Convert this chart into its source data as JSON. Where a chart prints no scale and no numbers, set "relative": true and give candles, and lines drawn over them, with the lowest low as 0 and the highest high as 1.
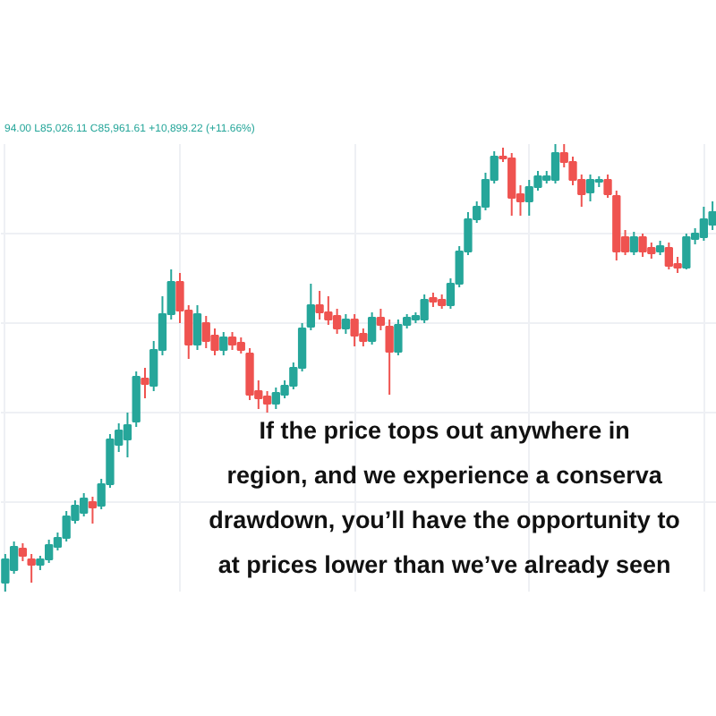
{
  "chart_data": {
    "type": "candlestick",
    "relative": true,
    "grid": true,
    "annotations": [
      "94.00 L85,026.11 C85,961.61 +10,899.22 (+11.66%)",
      "If the price tops out anywhere in",
      "region, and we experience a conserva",
      "drawdown, you’ll have the opportunity to",
      "at prices lower than we’ve already seen"
    ],
    "categories": [
      null,
      null,
      null,
      null,
      null,
      null,
      null,
      null,
      null,
      null,
      null,
      null,
      null,
      null,
      null,
      null,
      null,
      null,
      null,
      null,
      null,
      null,
      null,
      null,
      null,
      null,
      null,
      null,
      null,
      null,
      null,
      null,
      null,
      null,
      null,
      null,
      null,
      null,
      null,
      null,
      null,
      null,
      null,
      null,
      null,
      null,
      null,
      null,
      null,
      null,
      null,
      null,
      null,
      null,
      null,
      null,
      null,
      null,
      null,
      null,
      null,
      null,
      null,
      null,
      null,
      null,
      null,
      null,
      null,
      null,
      null,
      null,
      null,
      null,
      null,
      null,
      null,
      null,
      null,
      null,
      null,
      null
    ],
    "ohlc": [
      [
        0.02,
        0.084,
        0.0,
        0.072
      ],
      [
        0.048,
        0.112,
        0.04,
        0.1
      ],
      [
        0.096,
        0.108,
        0.068,
        0.08
      ],
      [
        0.072,
        0.084,
        0.02,
        0.06
      ],
      [
        0.06,
        0.08,
        0.048,
        0.072
      ],
      [
        0.072,
        0.116,
        0.064,
        0.104
      ],
      [
        0.1,
        0.132,
        0.092,
        0.12
      ],
      [
        0.12,
        0.18,
        0.112,
        0.168
      ],
      [
        0.16,
        0.204,
        0.152,
        0.192
      ],
      [
        0.176,
        0.22,
        0.168,
        0.208
      ],
      [
        0.2,
        0.212,
        0.152,
        0.188
      ],
      [
        0.192,
        0.252,
        0.184,
        0.24
      ],
      [
        0.24,
        0.352,
        0.232,
        0.34
      ],
      [
        0.328,
        0.376,
        0.312,
        0.36
      ],
      [
        0.34,
        0.4,
        0.3,
        0.372
      ],
      [
        0.38,
        0.492,
        0.368,
        0.48
      ],
      [
        0.476,
        0.5,
        0.432,
        0.464
      ],
      [
        0.46,
        0.56,
        0.448,
        0.54
      ],
      [
        0.54,
        0.66,
        0.528,
        0.62
      ],
      [
        0.62,
        0.72,
        0.608,
        0.692
      ],
      [
        0.692,
        0.712,
        0.6,
        0.628
      ],
      [
        0.628,
        0.64,
        0.52,
        0.552
      ],
      [
        0.552,
        0.64,
        0.54,
        0.62
      ],
      [
        0.6,
        0.616,
        0.544,
        0.56
      ],
      [
        0.572,
        0.588,
        0.528,
        0.54
      ],
      [
        0.54,
        0.58,
        0.528,
        0.568
      ],
      [
        0.568,
        0.58,
        0.54,
        0.552
      ],
      [
        0.556,
        0.568,
        0.532,
        0.54
      ],
      [
        0.532,
        0.544,
        0.428,
        0.44
      ],
      [
        0.448,
        0.472,
        0.408,
        0.432
      ],
      [
        0.436,
        0.448,
        0.4,
        0.42
      ],
      [
        0.42,
        0.456,
        0.408,
        0.444
      ],
      [
        0.44,
        0.472,
        0.432,
        0.46
      ],
      [
        0.46,
        0.512,
        0.452,
        0.5
      ],
      [
        0.5,
        0.6,
        0.492,
        0.588
      ],
      [
        0.592,
        0.688,
        0.584,
        0.64
      ],
      [
        0.64,
        0.672,
        0.608,
        0.624
      ],
      [
        0.624,
        0.66,
        0.596,
        0.608
      ],
      [
        0.616,
        0.632,
        0.576,
        0.588
      ],
      [
        0.588,
        0.62,
        0.576,
        0.608
      ],
      [
        0.608,
        0.62,
        0.548,
        0.572
      ],
      [
        0.576,
        0.588,
        0.548,
        0.56
      ],
      [
        0.56,
        0.624,
        0.552,
        0.612
      ],
      [
        0.612,
        0.632,
        0.584,
        0.596
      ],
      [
        0.592,
        0.608,
        0.44,
        0.536
      ],
      [
        0.536,
        0.608,
        0.528,
        0.596
      ],
      [
        0.596,
        0.62,
        0.588,
        0.612
      ],
      [
        0.608,
        0.624,
        0.6,
        0.616
      ],
      [
        0.608,
        0.664,
        0.6,
        0.652
      ],
      [
        0.656,
        0.668,
        0.636,
        0.648
      ],
      [
        0.652,
        0.664,
        0.632,
        0.64
      ],
      [
        0.64,
        0.7,
        0.632,
        0.688
      ],
      [
        0.688,
        0.772,
        0.68,
        0.76
      ],
      [
        0.76,
        0.848,
        0.752,
        0.832
      ],
      [
        0.832,
        0.872,
        0.824,
        0.86
      ],
      [
        0.86,
        0.936,
        0.852,
        0.92
      ],
      [
        0.92,
        0.984,
        0.912,
        0.972
      ],
      [
        0.972,
        0.992,
        0.96,
        0.968
      ],
      [
        0.968,
        0.98,
        0.84,
        0.88
      ],
      [
        0.888,
        0.908,
        0.84,
        0.872
      ],
      [
        0.872,
        0.92,
        0.84,
        0.904
      ],
      [
        0.904,
        0.94,
        0.896,
        0.928
      ],
      [
        0.92,
        0.94,
        0.912,
        0.928
      ],
      [
        0.92,
        1.0,
        0.912,
        0.98
      ],
      [
        0.98,
        1.0,
        0.948,
        0.96
      ],
      [
        0.96,
        0.972,
        0.908,
        0.92
      ],
      [
        0.92,
        0.932,
        0.86,
        0.888
      ],
      [
        0.892,
        0.932,
        0.872,
        0.92
      ],
      [
        0.916,
        0.928,
        0.904,
        0.92
      ],
      [
        0.92,
        0.932,
        0.88,
        0.888
      ],
      [
        0.884,
        0.896,
        0.74,
        0.76
      ],
      [
        0.792,
        0.808,
        0.752,
        0.76
      ],
      [
        0.76,
        0.804,
        0.752,
        0.792
      ],
      [
        0.792,
        0.8,
        0.748,
        0.76
      ],
      [
        0.768,
        0.78,
        0.744,
        0.756
      ],
      [
        0.76,
        0.784,
        0.752,
        0.772
      ],
      [
        0.768,
        0.78,
        0.72,
        0.728
      ],
      [
        0.732,
        0.748,
        0.712,
        0.724
      ],
      [
        0.724,
        0.8,
        0.72,
        0.792
      ],
      [
        0.788,
        0.812,
        0.776,
        0.8
      ],
      [
        0.792,
        0.86,
        0.784,
        0.832
      ],
      [
        0.82,
        0.872,
        0.808,
        0.848
      ]
    ],
    "colors": [
      "#26a69a",
      "#26a69a",
      "#ef5350",
      "#ef5350",
      "#26a69a",
      "#26a69a",
      "#26a69a",
      "#26a69a",
      "#26a69a",
      "#26a69a",
      "#ef5350",
      "#26a69a",
      "#26a69a",
      "#26a69a",
      "#26a69a",
      "#26a69a",
      "#ef5350",
      "#26a69a",
      "#26a69a",
      "#26a69a",
      "#ef5350",
      "#ef5350",
      "#26a69a",
      "#ef5350",
      "#ef5350",
      "#26a69a",
      "#ef5350",
      "#ef5350",
      "#ef5350",
      "#ef5350",
      "#ef5350",
      "#26a69a",
      "#26a69a",
      "#26a69a",
      "#26a69a",
      "#26a69a",
      "#ef5350",
      "#ef5350",
      "#ef5350",
      "#26a69a",
      "#ef5350",
      "#ef5350",
      "#26a69a",
      "#ef5350",
      "#ef5350",
      "#26a69a",
      "#26a69a",
      "#26a69a",
      "#26a69a",
      "#ef5350",
      "#ef5350",
      "#26a69a",
      "#26a69a",
      "#26a69a",
      "#26a69a",
      "#26a69a",
      "#26a69a",
      "#ef5350",
      "#ef5350",
      "#ef5350",
      "#26a69a",
      "#26a69a",
      "#26a69a",
      "#26a69a",
      "#ef5350",
      "#ef5350",
      "#ef5350",
      "#26a69a",
      "#26a69a",
      "#ef5350",
      "#ef5350",
      "#ef5350",
      "#26a69a",
      "#ef5350",
      "#ef5350",
      "#26a69a",
      "#ef5350",
      "#ef5350",
      "#26a69a",
      "#26a69a",
      "#26a69a",
      "#26a69a"
    ]
  }
}
